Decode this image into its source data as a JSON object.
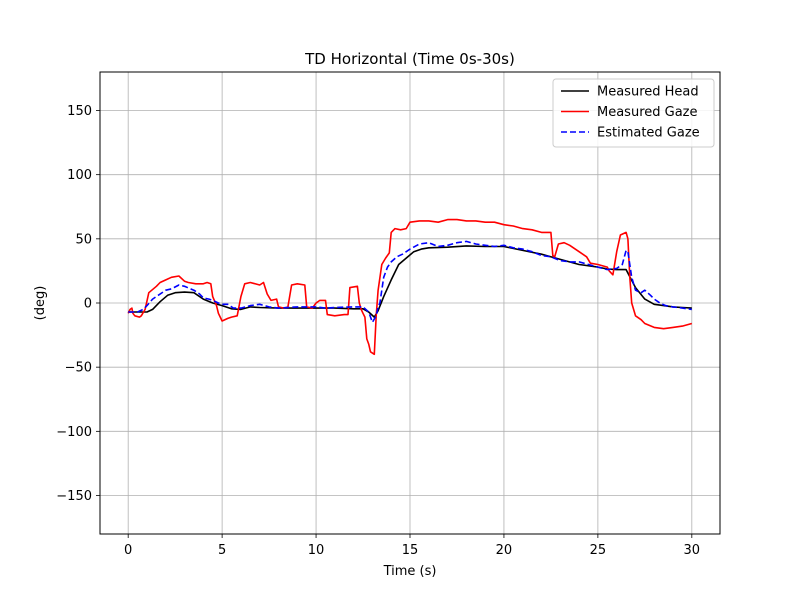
{
  "chart_data": {
    "type": "line",
    "title": "TD Horizontal (Time 0s-30s)",
    "xlabel": "Time (s)",
    "ylabel": "(deg)",
    "xlim": [
      -1.5,
      31.5
    ],
    "ylim": [
      -180,
      180
    ],
    "xticks": [
      0,
      5,
      10,
      15,
      20,
      25,
      30
    ],
    "yticks": [
      -150,
      -100,
      -50,
      0,
      50,
      100,
      150
    ],
    "grid": true,
    "legend_position": "top-right",
    "series": [
      {
        "name": "Measured Head",
        "color": "#000000",
        "style": "solid",
        "points": [
          [
            0,
            -7
          ],
          [
            0.5,
            -7
          ],
          [
            1,
            -7
          ],
          [
            1.3,
            -5
          ],
          [
            1.7,
            1
          ],
          [
            2.1,
            6
          ],
          [
            2.5,
            8
          ],
          [
            3,
            8.5
          ],
          [
            3.5,
            8
          ],
          [
            4,
            3
          ],
          [
            4.5,
            0
          ],
          [
            5,
            -2
          ],
          [
            5.5,
            -4.5
          ],
          [
            6,
            -5
          ],
          [
            6.5,
            -3
          ],
          [
            7,
            -3.5
          ],
          [
            8,
            -4
          ],
          [
            9,
            -4
          ],
          [
            10,
            -4
          ],
          [
            11,
            -4
          ],
          [
            12,
            -4.5
          ],
          [
            12.5,
            -4.5
          ],
          [
            12.8,
            -7
          ],
          [
            13.1,
            -11
          ],
          [
            13.3,
            -6
          ],
          [
            13.6,
            5
          ],
          [
            14,
            18
          ],
          [
            14.4,
            30
          ],
          [
            14.8,
            35
          ],
          [
            15.2,
            40
          ],
          [
            15.6,
            42
          ],
          [
            16,
            43
          ],
          [
            17,
            43.5
          ],
          [
            18,
            44.5
          ],
          [
            19,
            44
          ],
          [
            20,
            44
          ],
          [
            21,
            41
          ],
          [
            22,
            38
          ],
          [
            23,
            34
          ],
          [
            24,
            30
          ],
          [
            25,
            28
          ],
          [
            25.5,
            26.5
          ],
          [
            26,
            26
          ],
          [
            26.5,
            26
          ],
          [
            27,
            12
          ],
          [
            27.5,
            3
          ],
          [
            28,
            -1
          ],
          [
            28.5,
            -2
          ],
          [
            29,
            -3
          ],
          [
            29.5,
            -3.5
          ],
          [
            30,
            -4
          ]
        ]
      },
      {
        "name": "Measured Gaze",
        "color": "#ff0000",
        "style": "solid",
        "points": [
          [
            0,
            -8
          ],
          [
            0.1,
            -5
          ],
          [
            0.2,
            -4
          ],
          [
            0.25,
            -8
          ],
          [
            0.35,
            -10
          ],
          [
            0.6,
            -11
          ],
          [
            0.7,
            -10
          ],
          [
            0.9,
            -5
          ],
          [
            1.1,
            8
          ],
          [
            1.5,
            13
          ],
          [
            1.7,
            16
          ],
          [
            2,
            18
          ],
          [
            2.3,
            20
          ],
          [
            2.7,
            21
          ],
          [
            3,
            17
          ],
          [
            3.2,
            16
          ],
          [
            3.6,
            15
          ],
          [
            4,
            15
          ],
          [
            4.2,
            16
          ],
          [
            4.4,
            15
          ],
          [
            4.5,
            5
          ],
          [
            4.7,
            -2
          ],
          [
            4.8,
            -8
          ],
          [
            5,
            -14
          ],
          [
            5.3,
            -12
          ],
          [
            5.5,
            -11
          ],
          [
            5.8,
            -10
          ],
          [
            6,
            5
          ],
          [
            6.2,
            15
          ],
          [
            6.5,
            16
          ],
          [
            7,
            14
          ],
          [
            7.2,
            16
          ],
          [
            7.4,
            7
          ],
          [
            7.6,
            2
          ],
          [
            7.9,
            3
          ],
          [
            8,
            -3
          ],
          [
            8.3,
            -4
          ],
          [
            8.5,
            -3
          ],
          [
            8.7,
            14
          ],
          [
            9,
            15
          ],
          [
            9.4,
            14
          ],
          [
            9.5,
            -3
          ],
          [
            9.8,
            -4
          ],
          [
            10,
            0
          ],
          [
            10.2,
            2
          ],
          [
            10.5,
            2
          ],
          [
            10.6,
            -9
          ],
          [
            11,
            -10
          ],
          [
            11.5,
            -9
          ],
          [
            11.7,
            -9
          ],
          [
            11.8,
            12
          ],
          [
            12.2,
            13
          ],
          [
            12.3,
            0
          ],
          [
            12.4,
            -5
          ],
          [
            12.5,
            -8
          ],
          [
            12.6,
            -11
          ],
          [
            12.7,
            -28
          ],
          [
            12.8,
            -32
          ],
          [
            12.9,
            -38
          ],
          [
            13.1,
            -40
          ],
          [
            13.2,
            -10
          ],
          [
            13.3,
            10
          ],
          [
            13.5,
            30
          ],
          [
            13.7,
            35
          ],
          [
            13.9,
            39
          ],
          [
            14,
            55
          ],
          [
            14.2,
            58
          ],
          [
            14.5,
            57
          ],
          [
            14.8,
            58
          ],
          [
            15,
            63
          ],
          [
            15.5,
            64
          ],
          [
            16,
            64
          ],
          [
            16.5,
            63
          ],
          [
            17,
            65
          ],
          [
            17.5,
            65
          ],
          [
            18,
            64
          ],
          [
            18.5,
            64
          ],
          [
            19,
            63
          ],
          [
            19.5,
            63
          ],
          [
            20,
            61
          ],
          [
            20.5,
            60
          ],
          [
            21,
            58
          ],
          [
            21.5,
            57
          ],
          [
            22,
            55
          ],
          [
            22.5,
            55
          ],
          [
            22.6,
            37
          ],
          [
            22.7,
            36
          ],
          [
            22.9,
            46
          ],
          [
            23.2,
            47
          ],
          [
            23.5,
            45
          ],
          [
            24,
            40
          ],
          [
            24.4,
            36
          ],
          [
            24.6,
            31
          ],
          [
            25,
            30
          ],
          [
            25.5,
            28
          ],
          [
            25.6,
            25
          ],
          [
            25.8,
            22
          ],
          [
            26,
            40
          ],
          [
            26.2,
            53
          ],
          [
            26.5,
            55
          ],
          [
            26.6,
            50
          ],
          [
            26.7,
            20
          ],
          [
            26.8,
            0
          ],
          [
            27,
            -10
          ],
          [
            27.3,
            -13
          ],
          [
            27.5,
            -16
          ],
          [
            28,
            -19
          ],
          [
            28.5,
            -20
          ],
          [
            29,
            -19
          ],
          [
            29.5,
            -18
          ],
          [
            30,
            -16
          ]
        ]
      },
      {
        "name": "Estimated Gaze",
        "color": "#0000ff",
        "style": "dashed",
        "points": [
          [
            0,
            -7
          ],
          [
            0.5,
            -7
          ],
          [
            0.8,
            -5
          ],
          [
            1,
            -2
          ],
          [
            1.3,
            3
          ],
          [
            1.6,
            6
          ],
          [
            2,
            10
          ],
          [
            2.3,
            11
          ],
          [
            2.7,
            14
          ],
          [
            3,
            13
          ],
          [
            3.5,
            10
          ],
          [
            3.8,
            7
          ],
          [
            4,
            4
          ],
          [
            4.3,
            3
          ],
          [
            4.5,
            2
          ],
          [
            4.8,
            0
          ],
          [
            5,
            -1
          ],
          [
            5.3,
            -1
          ],
          [
            5.6,
            -4
          ],
          [
            6,
            -4
          ],
          [
            6.5,
            -2
          ],
          [
            7,
            -1
          ],
          [
            7.5,
            -3
          ],
          [
            8,
            -4
          ],
          [
            9,
            -3
          ],
          [
            10,
            -3
          ],
          [
            10.5,
            -4
          ],
          [
            11,
            -3.5
          ],
          [
            12,
            -3
          ],
          [
            12.5,
            -3
          ],
          [
            12.8,
            -7
          ],
          [
            13,
            -15
          ],
          [
            13.2,
            -10
          ],
          [
            13.3,
            -3
          ],
          [
            13.4,
            0
          ],
          [
            13.6,
            20
          ],
          [
            13.8,
            28
          ],
          [
            14,
            32
          ],
          [
            14.3,
            36
          ],
          [
            14.6,
            38
          ],
          [
            15,
            42
          ],
          [
            15.5,
            46
          ],
          [
            16,
            47
          ],
          [
            16.5,
            44
          ],
          [
            17,
            45
          ],
          [
            17.5,
            47
          ],
          [
            18,
            48
          ],
          [
            18.5,
            46
          ],
          [
            19,
            45
          ],
          [
            19.5,
            44
          ],
          [
            20,
            45
          ],
          [
            20.5,
            43
          ],
          [
            21,
            42
          ],
          [
            21.5,
            40
          ],
          [
            22,
            37
          ],
          [
            22.5,
            36
          ],
          [
            23,
            33
          ],
          [
            23.5,
            32
          ],
          [
            24,
            32
          ],
          [
            24.5,
            30
          ],
          [
            25,
            28
          ],
          [
            25.5,
            26
          ],
          [
            26,
            27
          ],
          [
            26.3,
            30
          ],
          [
            26.5,
            41
          ],
          [
            26.6,
            40
          ],
          [
            26.8,
            20
          ],
          [
            27,
            10
          ],
          [
            27.3,
            8
          ],
          [
            27.5,
            10
          ],
          [
            27.8,
            6
          ],
          [
            28,
            3
          ],
          [
            28.3,
            0
          ],
          [
            28.6,
            -2
          ],
          [
            29,
            -3
          ],
          [
            29.5,
            -4
          ],
          [
            30,
            -5
          ]
        ]
      }
    ]
  }
}
